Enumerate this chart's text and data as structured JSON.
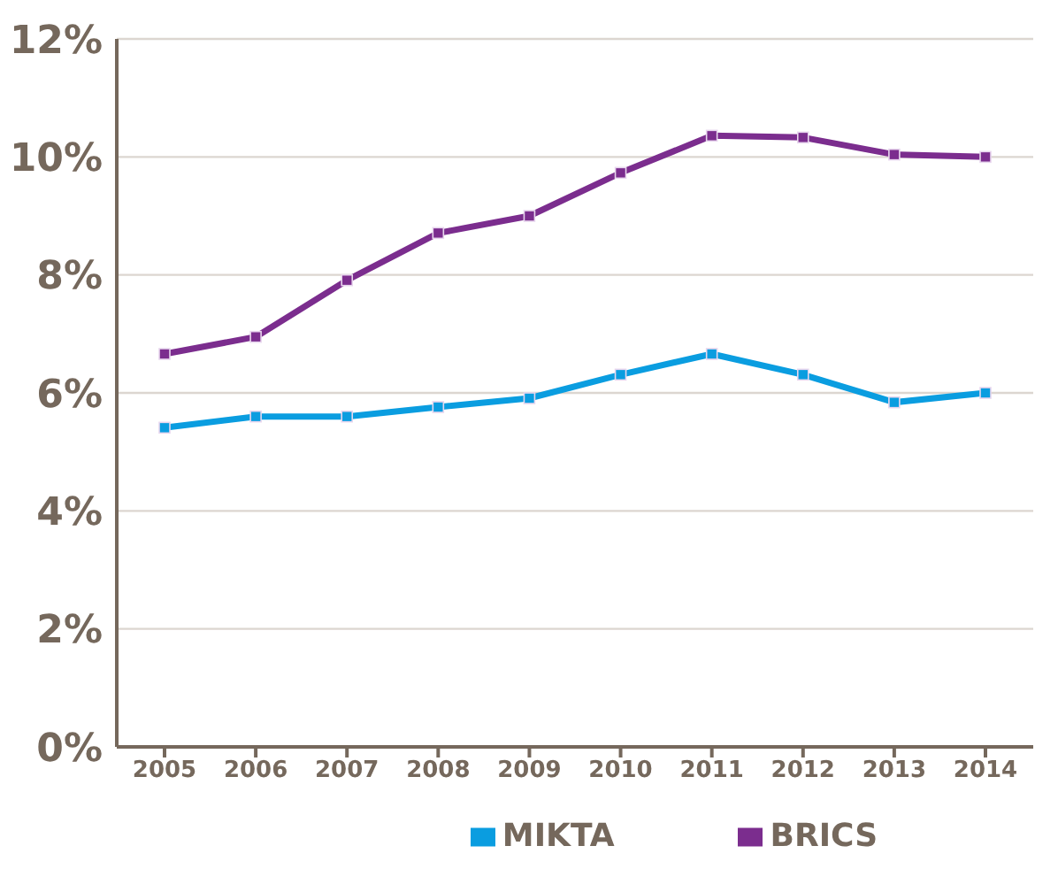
{
  "chart_data": {
    "type": "line",
    "categories": [
      "2005",
      "2006",
      "2007",
      "2008",
      "2009",
      "2010",
      "2011",
      "2012",
      "2013",
      "2014"
    ],
    "series": [
      {
        "name": "MIKTA",
        "color": "#0a9de0",
        "values": [
          5.41,
          5.6,
          5.6,
          5.76,
          5.91,
          6.31,
          6.66,
          6.31,
          5.84,
          6.0
        ]
      },
      {
        "name": "BRICS",
        "color": "#7b2d8e",
        "values": [
          6.66,
          6.95,
          7.91,
          8.71,
          9.0,
          9.73,
          10.36,
          10.33,
          10.04,
          10.0
        ]
      }
    ],
    "ylim": [
      0,
      12
    ],
    "yticks": [
      {
        "value": 0,
        "label": "0%"
      },
      {
        "value": 2,
        "label": "2%"
      },
      {
        "value": 4,
        "label": "4%"
      },
      {
        "value": 6,
        "label": "6%"
      },
      {
        "value": 8,
        "label": "8%"
      },
      {
        "value": 10,
        "label": "10%"
      },
      {
        "value": 12,
        "label": "12%"
      }
    ],
    "grid": "y",
    "legend": "bottom",
    "marker": "square",
    "line_style": "solid"
  }
}
